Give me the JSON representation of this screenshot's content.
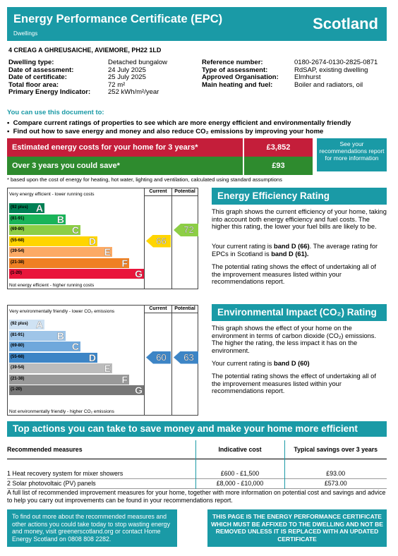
{
  "header": {
    "title": "Energy Performance Certificate (EPC)",
    "subtitle": "Dwellings",
    "region": "Scotland"
  },
  "address": "4 CREAG A GHREUSAICHE, AVIEMORE, PH22 1LD",
  "details_left": [
    {
      "k": "Dwelling type:",
      "v": "Detached bungalow"
    },
    {
      "k": "Date of assessment:",
      "v": "24 July 2025"
    },
    {
      "k": "Date of certificate:",
      "v": "25 July 2025"
    },
    {
      "k": "Total floor area:",
      "v": "72 m²"
    },
    {
      "k": "Primary Energy Indicator:",
      "v": "252 kWh/m²/year"
    }
  ],
  "details_right": [
    {
      "k": "Reference number:",
      "v": "0180-2674-0130-2825-0871"
    },
    {
      "k": "Type of assessment:",
      "v": "RdSAP, existing dwelling"
    },
    {
      "k": "Approved Organisation:",
      "v": "Elmhurst"
    },
    {
      "k": "Main heating and fuel:",
      "v": "Boiler and radiators, oil"
    }
  ],
  "use_heading": "You can use this document to:",
  "bullets": [
    "Compare current ratings of properties to see which are more energy efficient and environmentally friendly",
    "Find out how to save energy and money and also reduce CO₂ emissions by improving your home"
  ],
  "costs": {
    "estimated_label": "Estimated energy costs for your home for 3 years*",
    "estimated_value": "£3,852",
    "save_label": "Over 3 years you could save*",
    "save_value": "£93",
    "rec_link": "See your recommendations report for more information",
    "footnote": "* based upon the cost of energy for heating, hot water, lighting and ventilation, calculated using standard assumptions"
  },
  "ee_chart": {
    "top_text": "Very energy efficient - lower running costs",
    "bottom_text": "Not energy efficient - higher running costs",
    "col_current": "Current",
    "col_potential": "Potential",
    "bands": [
      {
        "range": "(92 plus)",
        "letter": "A",
        "color": "#008054"
      },
      {
        "range": "(81-91)",
        "letter": "B",
        "color": "#19b459"
      },
      {
        "range": "(69-80)",
        "letter": "C",
        "color": "#8dce46"
      },
      {
        "range": "(55-68)",
        "letter": "D",
        "color": "#ffd500"
      },
      {
        "range": "(39-54)",
        "letter": "E",
        "color": "#fcaa65"
      },
      {
        "range": "(21-38)",
        "letter": "F",
        "color": "#ef8023"
      },
      {
        "range": "(1-20)",
        "letter": "G",
        "color": "#e9153b"
      }
    ],
    "current": 66,
    "potential": 72,
    "current_band": "D",
    "potential_band": "C"
  },
  "ei_chart": {
    "top_text": "Very environmentally friendly - lower CO₂ emissions",
    "bottom_text": "Not environmentally friendly - higher CO₂ emissions",
    "col_current": "Current",
    "col_potential": "Potential",
    "bands": [
      {
        "range": "(92 plus)",
        "letter": "A",
        "color": "#cfe2f3"
      },
      {
        "range": "(81-91)",
        "letter": "B",
        "color": "#9fc5e8"
      },
      {
        "range": "(69-80)",
        "letter": "C",
        "color": "#6fa8dc"
      },
      {
        "range": "(55-68)",
        "letter": "D",
        "color": "#3d85c6"
      },
      {
        "range": "(39-54)",
        "letter": "E",
        "color": "#bcbcbc"
      },
      {
        "range": "(21-38)",
        "letter": "F",
        "color": "#999999"
      },
      {
        "range": "(1-20)",
        "letter": "G",
        "color": "#777777"
      }
    ],
    "current": 60,
    "potential": 63,
    "current_band": "D",
    "potential_band": "D"
  },
  "ee_panel": {
    "title": "Energy Efficiency Rating",
    "p1": "This graph shows the current efficiency of your home, taking into account both energy efficiency and fuel costs. The higher this rating, the lower your fuel bills are likely to be.",
    "p2a": "Your current rating is ",
    "p2b": "band D (66)",
    "p2c": ". The average rating for EPCs in Scotland is ",
    "p2d": "band D (61).",
    "p3": "The potential rating shows the effect of undertaking all of the improvement measures listed within your recommendations report."
  },
  "ei_panel": {
    "title": "Environmental Impact (CO₂) Rating",
    "p1": "This graph shows the effect of your home on the environment in terms of carbon dioxide (CO₂) emissions. The higher the rating, the less impact it has on the environment.",
    "p2a": "Your current rating is ",
    "p2b": "band D (60)",
    "p3": "The potential rating shows the effect of undertaking all of the improvement measures listed within your recommendations report."
  },
  "top_actions": {
    "title": "Top actions you can take to save money and make your home more efficient",
    "headers": [
      "Recommended measures",
      "Indicative cost",
      "Typical savings over 3 years"
    ],
    "rows": [
      {
        "measure": "1 Heat recovery system for mixer showers",
        "cost": "£600 - £1,500",
        "saving": "£93.00"
      },
      {
        "measure": "2 Solar photovoltaic (PV) panels",
        "cost": "£8,000 - £10,000",
        "saving": "£573.00"
      }
    ],
    "note": "A full list of recommended improvement measures for your home, together with more information on potential cost and savings and advice to help you carry out improvements can be found in your recommendations report."
  },
  "footer": {
    "left": "To find out more about the recommended measures and other actions you could take today to stop wasting energy and money, visit greenerscotland.org or contact Home Energy Scotland on 0808 808 2282.",
    "right": "THIS PAGE IS THE ENERGY PERFORMANCE CERTIFICATE WHICH MUST BE AFFIXED TO THE DWELLING AND NOT BE REMOVED UNLESS IT IS REPLACED WITH AN UPDATED CERTIFICATE"
  },
  "colors": {
    "teal": "#1a9aa6",
    "cost_red": "#c41e3a",
    "save_green": "#2e8b2e"
  }
}
